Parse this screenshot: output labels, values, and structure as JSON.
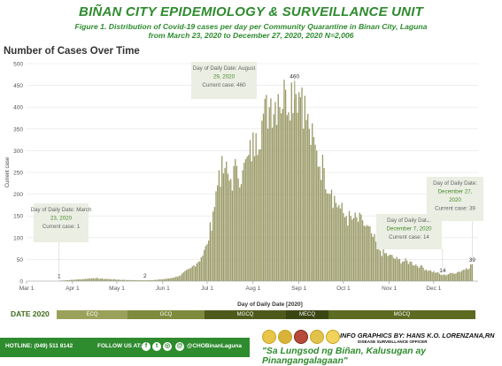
{
  "header": {
    "title": "BIÑAN CITY EPIDEMIOLOGY & SURVEILLANCE UNIT",
    "subtitle_line1": "Figure 1. Distribution of Covid-19  cases per day per Community Quarantine in Binan City, Laguna",
    "subtitle_line2": "from March 23, 2020 to December 27, 2020, 2020 N=2,006"
  },
  "chart_heading": "Number of Cases Over Time",
  "colors": {
    "bar": "#9a9a68",
    "title_green": "#2e8b2e",
    "callout_bg": "#e9ede2",
    "callout_text": "#4a8a2a",
    "ecq": "#9aa15a",
    "gcq": "#7e8a3c",
    "mgcq": "#4e5a1c",
    "mecq": "#3a4514"
  },
  "chart_data": {
    "type": "bar",
    "xlabel": "Day of Daily Date [2020]",
    "ylabel": "Current case",
    "ylim": [
      0,
      500
    ],
    "y_ticks": [
      0,
      50,
      100,
      150,
      200,
      250,
      300,
      350,
      400,
      450,
      500
    ],
    "x_ticks": [
      "Mar 1",
      "Apr 1",
      "May 1",
      "Jun 1",
      "Jul 1",
      "Aug 1",
      "Sep 1",
      "Oct 1",
      "Nov 1",
      "Dec 1"
    ],
    "x_range": [
      "2020-03-01",
      "2020-12-31"
    ],
    "series": [
      {
        "points": [
          [
            "2020-03-23",
            1
          ],
          [
            "2020-04-05",
            4
          ],
          [
            "2020-04-15",
            7
          ],
          [
            "2020-04-25",
            5
          ],
          [
            "2020-05-05",
            3
          ],
          [
            "2020-05-15",
            2
          ],
          [
            "2020-05-21",
            2
          ],
          [
            "2020-05-28",
            3
          ],
          [
            "2020-06-05",
            6
          ],
          [
            "2020-06-12",
            12
          ],
          [
            "2020-06-20",
            30
          ],
          [
            "2020-06-27",
            55
          ],
          [
            "2020-07-01",
            85
          ],
          [
            "2020-07-05",
            160
          ],
          [
            "2020-07-09",
            255
          ],
          [
            "2020-07-13",
            260
          ],
          [
            "2020-07-17",
            235
          ],
          [
            "2020-07-21",
            265
          ],
          [
            "2020-07-25",
            255
          ],
          [
            "2020-07-29",
            290
          ],
          [
            "2020-08-03",
            340
          ],
          [
            "2020-08-08",
            385
          ],
          [
            "2020-08-13",
            420
          ],
          [
            "2020-08-18",
            430
          ],
          [
            "2020-08-23",
            440
          ],
          [
            "2020-08-29",
            460
          ],
          [
            "2020-09-03",
            445
          ],
          [
            "2020-09-08",
            350
          ],
          [
            "2020-09-13",
            300
          ],
          [
            "2020-09-18",
            260
          ],
          [
            "2020-09-23",
            210
          ],
          [
            "2020-09-28",
            175
          ],
          [
            "2020-10-03",
            150
          ],
          [
            "2020-10-08",
            145
          ],
          [
            "2020-10-14",
            140
          ],
          [
            "2020-10-20",
            110
          ],
          [
            "2020-10-26",
            70
          ],
          [
            "2020-11-01",
            60
          ],
          [
            "2020-11-07",
            50
          ],
          [
            "2020-11-15",
            45
          ],
          [
            "2020-11-22",
            35
          ],
          [
            "2020-11-28",
            25
          ],
          [
            "2020-12-03",
            20
          ],
          [
            "2020-12-07",
            14
          ],
          [
            "2020-12-13",
            18
          ],
          [
            "2020-12-18",
            22
          ],
          [
            "2020-12-23",
            30
          ],
          [
            "2020-12-27",
            39
          ]
        ]
      }
    ],
    "value_labels": [
      {
        "date": "2020-03-23",
        "text": "1"
      },
      {
        "date": "2020-05-20",
        "text": "2"
      },
      {
        "date": "2020-08-29",
        "text": "460"
      },
      {
        "date": "2020-12-07",
        "text": "14"
      },
      {
        "date": "2020-12-27",
        "text": "39"
      }
    ],
    "callouts": [
      {
        "line1": "Day of Daily Date: March",
        "line2": "23, 2020",
        "line3": "Current case: 1"
      },
      {
        "line1": "Day of Daily Date: August",
        "line2": "29, 2020",
        "line3": "Current case: 460"
      },
      {
        "line1": "Day of Daily Date:",
        "line2": "December 7, 2020",
        "line3": "Current case: 14"
      },
      {
        "line1": "Day of Daily Date:",
        "line2": "December 27,",
        "line3": "2020",
        "line4": "Current case: 39"
      }
    ]
  },
  "date_row": {
    "label": "DATE 2020",
    "phases": [
      "ECQ",
      "GCQ",
      "MGCQ",
      "MECQ",
      "MGCQ"
    ]
  },
  "footer": {
    "hotline": "HOTLINE: (049) 511 8142",
    "follow": "FOLLOW US AT:",
    "handle": "@CHOBinanLaguna",
    "credit": "INFO GRAPHICS BY: HANS K.O. LORENZANA,RN",
    "credit_role": "DISEASE SURVEILLANCE OFFICER",
    "slogan": "\"Sa Lungsod ng Biñan, Kalusugan ay Pinangangalagaan\""
  }
}
